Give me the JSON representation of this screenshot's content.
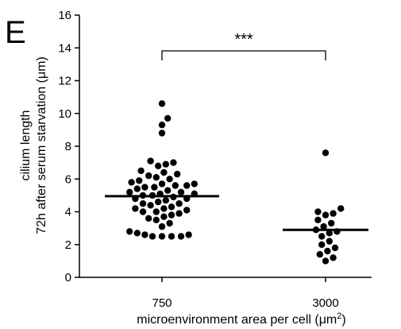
{
  "panel_label": "E",
  "chart_data": {
    "type": "scatter",
    "ylabel_line1": "cilium length",
    "ylabel_line2": "72h after serum starvation (μm)",
    "xlabel_main": "microenvironment area per cell (μm",
    "xlabel_sup": "2",
    "xlabel_end": ")",
    "categories": [
      "750",
      "3000"
    ],
    "ylim": [
      0,
      16
    ],
    "yticks": [
      0,
      2,
      4,
      6,
      8,
      10,
      12,
      14,
      16
    ],
    "significance": "***",
    "point_color": "#000000",
    "series": [
      {
        "category": "750",
        "mean": 4.95,
        "values": [
          10.6,
          9.7,
          9.3,
          8.8,
          7.1,
          7.0,
          6.9,
          6.8,
          6.5,
          6.4,
          6.3,
          6.2,
          6.1,
          6.0,
          5.9,
          5.8,
          5.7,
          5.7,
          5.6,
          5.6,
          5.5,
          5.5,
          5.4,
          5.3,
          5.2,
          5.2,
          5.1,
          5.1,
          5.0,
          5.0,
          4.9,
          4.8,
          4.8,
          4.7,
          4.6,
          4.5,
          4.5,
          4.4,
          4.3,
          4.2,
          4.2,
          4.1,
          4.0,
          4.0,
          3.9,
          3.8,
          3.7,
          3.6,
          3.5,
          3.3,
          3.1,
          2.8,
          2.7,
          2.6,
          2.6,
          2.5,
          2.5,
          2.5,
          2.5
        ]
      },
      {
        "category": "3000",
        "mean": 2.9,
        "values": [
          7.6,
          4.2,
          4.0,
          3.9,
          3.8,
          3.5,
          3.3,
          3.1,
          2.9,
          2.8,
          2.7,
          2.5,
          2.2,
          2.0,
          1.8,
          1.6,
          1.4,
          1.2,
          1.0
        ]
      }
    ]
  }
}
